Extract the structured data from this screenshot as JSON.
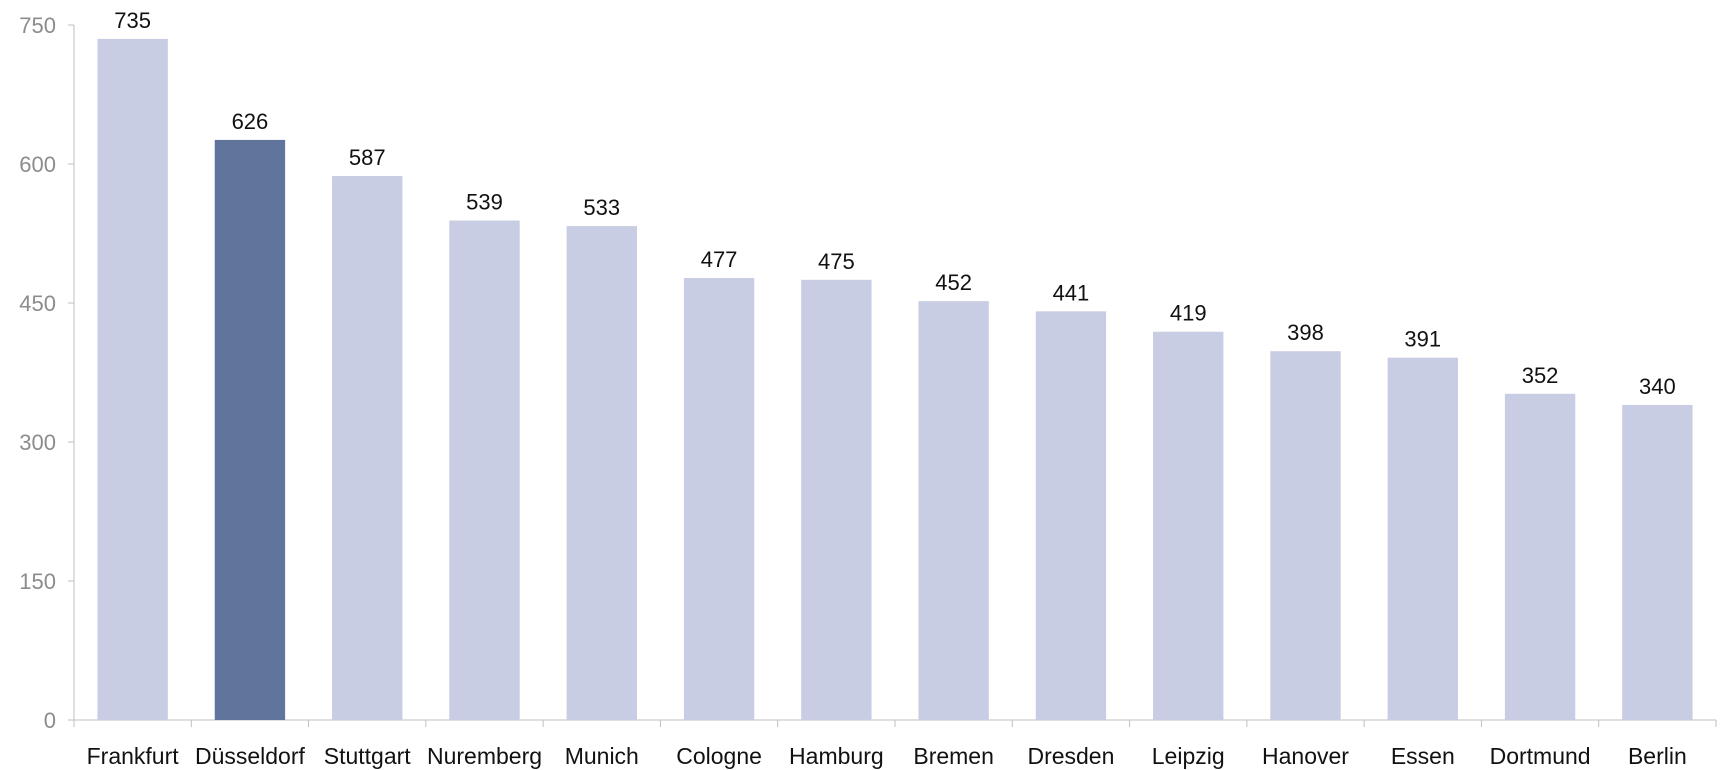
{
  "chart_data": {
    "type": "bar",
    "categories": [
      "Frankfurt",
      "Düsseldorf",
      "Stuttgart",
      "Nuremberg",
      "Munich",
      "Cologne",
      "Hamburg",
      "Bremen",
      "Dresden",
      "Leipzig",
      "Hanover",
      "Essen",
      "Dortmund",
      "Berlin"
    ],
    "values": [
      735,
      626,
      587,
      539,
      533,
      477,
      475,
      452,
      441,
      419,
      398,
      391,
      352,
      340
    ],
    "data_labels": [
      "735",
      "626",
      "587",
      "539",
      "533",
      "477",
      "475",
      "452",
      "441",
      "419",
      "398",
      "391",
      "352",
      "340"
    ],
    "highlight_index": 1,
    "ylim": [
      0,
      750
    ],
    "yticks": [
      0,
      150,
      300,
      450,
      600,
      750
    ],
    "ytick_labels": [
      "0",
      "150",
      "300",
      "450",
      "600",
      "750"
    ],
    "grid": false,
    "colors": {
      "bar": "#c8cde3",
      "highlight": "#61749b",
      "axis": "#bfbfbf",
      "tick_text": "#8c8c8c",
      "label_text": "#111111"
    }
  }
}
